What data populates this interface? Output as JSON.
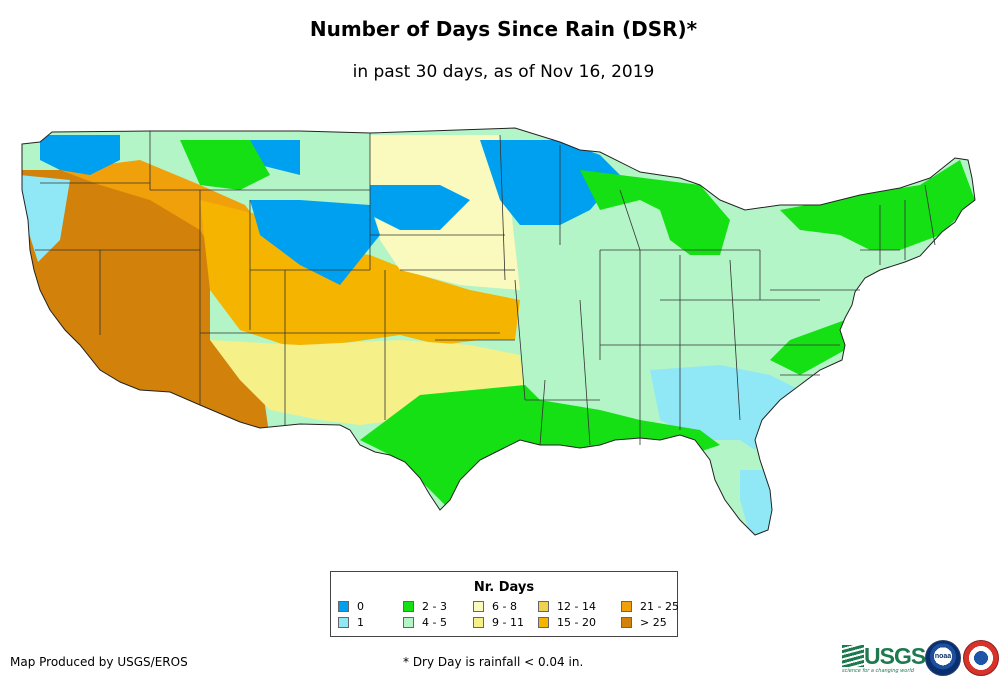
{
  "title": "Number of Days Since Rain (DSR)*",
  "subtitle": "in past 30 days, as of Nov 16, 2019",
  "legend": {
    "title": "Nr. Days",
    "items": [
      {
        "label": "0",
        "color": "#00a0f0"
      },
      {
        "label": "1",
        "color": "#90e8f6"
      },
      {
        "label": "2 - 3",
        "color": "#14e014"
      },
      {
        "label": "4 - 5",
        "color": "#b4f5c8"
      },
      {
        "label": "6 - 8",
        "color": "#fafabe"
      },
      {
        "label": "9 - 11",
        "color": "#f5f088"
      },
      {
        "label": "12 - 14",
        "color": "#f0d250"
      },
      {
        "label": "15 - 20",
        "color": "#f5b400"
      },
      {
        "label": "21 - 25",
        "color": "#f0a00a"
      },
      {
        "label": "> 25",
        "color": "#d2820a"
      }
    ]
  },
  "footer": {
    "producer": "Map Produced by USGS/EROS",
    "note": "* Dry Day is rainfall < 0.04 in."
  },
  "logos": {
    "usgs": {
      "text": "USGS",
      "tagline": "science for a changing world"
    },
    "noaa": {
      "text": "noaa"
    },
    "nws": {
      "text": "NATIONAL WEATHER SERVICE"
    }
  },
  "map": {
    "region": "Contiguous United States",
    "regions": [
      {
        "area": "Far West / California / Nevada / Arizona",
        "category": "> 25"
      },
      {
        "area": "Oregon / Idaho / Wyoming",
        "category": "21 - 25"
      },
      {
        "area": "Utah / Colorado / Kansas",
        "category": "15 - 20"
      },
      {
        "area": "New Mexico / Oklahoma / west Texas",
        "category": "9 - 11"
      },
      {
        "area": "Nebraska / Dakotas",
        "category": "6 - 8"
      },
      {
        "area": "Upper Midwest / Minnesota / Montana",
        "category": "0"
      },
      {
        "area": "Pacific Northwest / Southeast",
        "category": "1"
      },
      {
        "area": "Texas / Gulf Coast / Great Lakes / New England",
        "category": "2 - 3"
      },
      {
        "area": "Ohio Valley / Midwest / Mid-Atlantic",
        "category": "4 - 5"
      }
    ]
  }
}
